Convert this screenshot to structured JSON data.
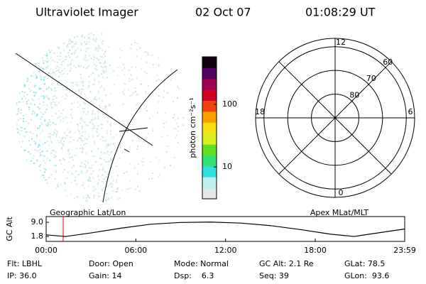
{
  "header": {
    "title": "Ultraviolet Imager",
    "date": "02 Oct 07",
    "time": "01:08:29 UT"
  },
  "chart_data": [
    {
      "type": "colorbar",
      "label": "photon cm⁻²s⁻¹",
      "log_scale": true,
      "ylim": [
        3.1,
        575
      ],
      "yticks": [
        10,
        100
      ],
      "colors": [
        "#e4e8e8",
        "#bfeeee",
        "#2ee0e0",
        "#30e070",
        "#60e020",
        "#d8f020",
        "#f8e010",
        "#f8a000",
        "#f04010",
        "#d00020",
        "#a00050",
        "#500060",
        "#100010"
      ]
    },
    {
      "type": "polar",
      "title": "Apex MLat/MLT",
      "rlim": [
        90,
        56.5
      ],
      "rticks": [
        80,
        70,
        60
      ],
      "thetalim": [
        0,
        24
      ],
      "thetaticks": [
        0,
        6,
        12,
        18
      ]
    },
    {
      "type": "line",
      "title": "Geographic Lat/Lon",
      "ylabel": "GC Alt",
      "xlim": [
        0,
        23.983
      ],
      "xticks": [
        {
          "value": 0,
          "label": "00:00"
        },
        {
          "value": 6,
          "label": "06:00"
        },
        {
          "value": 12,
          "label": "12:00"
        },
        {
          "value": 18,
          "label": "18:00"
        },
        {
          "value": 23.983,
          "label": "23:59"
        }
      ],
      "ylim": [
        -0.7,
        11.9
      ],
      "yticks": [
        {
          "value": 9,
          "label": "9.0"
        },
        {
          "value": 1.8,
          "label": "1.8"
        }
      ],
      "marker_x": 1.14,
      "marker_color": "#e00000",
      "x": [
        0,
        1.3,
        3,
        5,
        7,
        9,
        11,
        13,
        15,
        17,
        19,
        20.6,
        22,
        23.983
      ],
      "series": [
        {
          "color": "#000000",
          "values": [
            2.6,
            1.8,
            3.6,
            6.0,
            8.0,
            8.9,
            9.1,
            8.6,
            7.3,
            5.3,
            3.0,
            1.8,
            3.4,
            5.6
          ]
        }
      ]
    }
  ],
  "info": [
    [
      "Flt: LBHL",
      "Door: Open",
      "Mode: Normal",
      "GC Alt: 2.1 Re",
      "GLat: 78.5"
    ],
    [
      "IP: 36.0",
      "Gain: 14",
      "Dsp:    6.3",
      "Seq: 39",
      "GLon:  93.6"
    ]
  ]
}
